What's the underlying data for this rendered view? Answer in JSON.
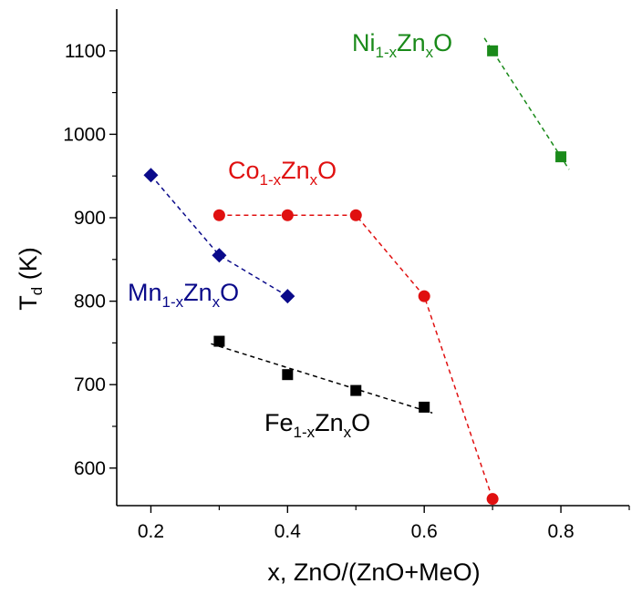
{
  "chart_data": {
    "type": "scatter",
    "xlabel": "x, ZnO/(ZnO+MeO)",
    "ylabel": {
      "main": "T",
      "sub": "d",
      "unit": "(K)"
    },
    "xlim": [
      0.15,
      0.9
    ],
    "ylim": [
      555,
      1150
    ],
    "x_ticks": [
      0.2,
      0.4,
      0.6,
      0.8
    ],
    "x_tick_labels": [
      "0.2",
      "0.4",
      "0.6",
      "0.8"
    ],
    "y_ticks": [
      600,
      700,
      800,
      900,
      1000,
      1100
    ],
    "y_tick_labels": [
      "600",
      "700",
      "800",
      "900",
      "1000",
      "1100"
    ],
    "grid": false,
    "series": [
      {
        "label_parts": [
          "Ni",
          "1-x",
          "Zn",
          "x",
          "O"
        ],
        "color": "#1a8a1a",
        "marker": "square",
        "line": "fit",
        "x": [
          0.7,
          0.8
        ],
        "y": [
          1100,
          973
        ]
      },
      {
        "label_parts": [
          "Co",
          "1-x",
          "Zn",
          "x",
          "O"
        ],
        "color": "#e01010",
        "marker": "circle",
        "line": "connect",
        "x": [
          0.3,
          0.4,
          0.5,
          0.6,
          0.7
        ],
        "y": [
          903,
          903,
          903,
          806,
          563
        ]
      },
      {
        "label_parts": [
          "Mn",
          "1-x",
          "Zn",
          "x",
          "O"
        ],
        "color": "#0a0a8a",
        "marker": "diamond",
        "line": "connect",
        "x": [
          0.2,
          0.3,
          0.4
        ],
        "y": [
          951,
          855,
          806
        ]
      },
      {
        "label_parts": [
          "Fe",
          "1-x",
          "Zn",
          "x",
          "O"
        ],
        "color": "#000000",
        "marker": "square",
        "line": "fit",
        "x": [
          0.3,
          0.4,
          0.5,
          0.6
        ],
        "y": [
          752,
          712,
          693,
          673
        ]
      }
    ]
  }
}
